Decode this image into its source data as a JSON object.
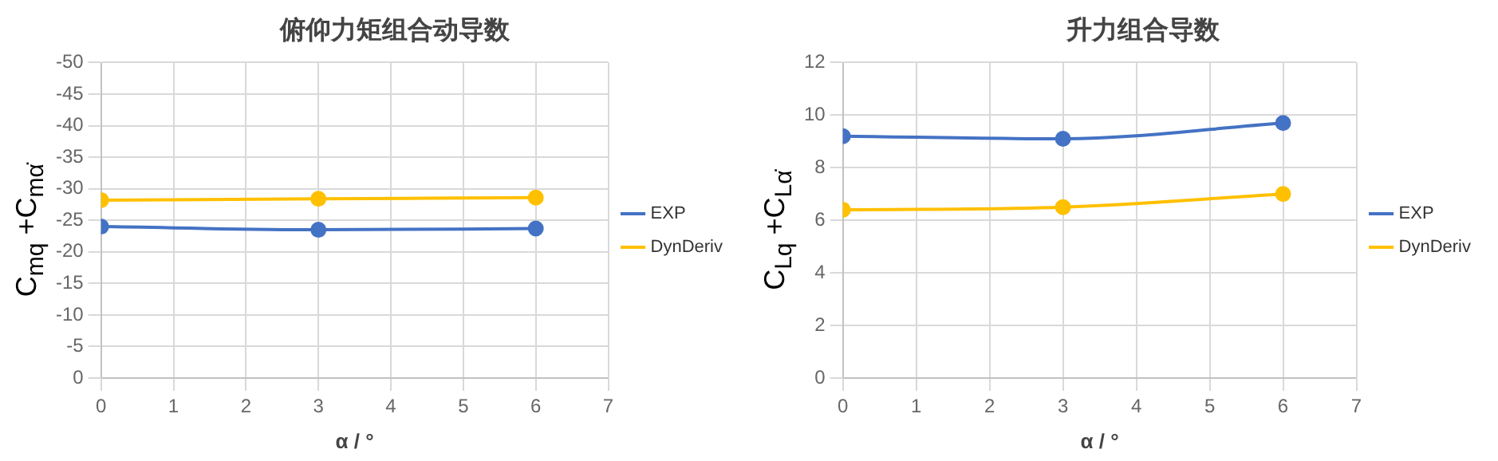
{
  "chart_data": [
    {
      "type": "line",
      "title": "俯仰力矩组合动导数",
      "xlabel": "α / °",
      "ylabel": "C$_{mq}$ +C$_{mα̇}$",
      "x": [
        0,
        3,
        6
      ],
      "series": [
        {
          "name": "EXP",
          "color": "#4472c4",
          "values": [
            -24,
            -23.5,
            -23.7
          ]
        },
        {
          "name": "DynDeriv",
          "color": "#ffc000",
          "values": [
            -28.2,
            -28.4,
            -28.6
          ]
        }
      ],
      "xlim": [
        0,
        7
      ],
      "xticks": [
        0,
        1,
        2,
        3,
        4,
        5,
        6,
        7
      ],
      "ylim": [
        0,
        -50
      ],
      "yticks": [
        0,
        -5,
        -10,
        -15,
        -20,
        -25,
        -30,
        -35,
        -40,
        -45,
        -50
      ],
      "grid": true,
      "legend": "right",
      "marker": "circle"
    },
    {
      "type": "line",
      "title": "升力组合导数",
      "xlabel": "α / °",
      "ylabel": "C$_{Lq}$ +C$_{Lα̇}$",
      "x": [
        0,
        3,
        6
      ],
      "series": [
        {
          "name": "EXP",
          "color": "#4472c4",
          "values": [
            9.2,
            9.1,
            9.7
          ]
        },
        {
          "name": "DynDeriv",
          "color": "#ffc000",
          "values": [
            6.4,
            6.5,
            7.0
          ]
        }
      ],
      "xlim": [
        0,
        7
      ],
      "xticks": [
        0,
        1,
        2,
        3,
        4,
        5,
        6,
        7
      ],
      "ylim": [
        0,
        12
      ],
      "yticks": [
        0,
        2,
        4,
        6,
        8,
        10,
        12
      ],
      "grid": true,
      "legend": "right",
      "marker": "circle"
    }
  ]
}
